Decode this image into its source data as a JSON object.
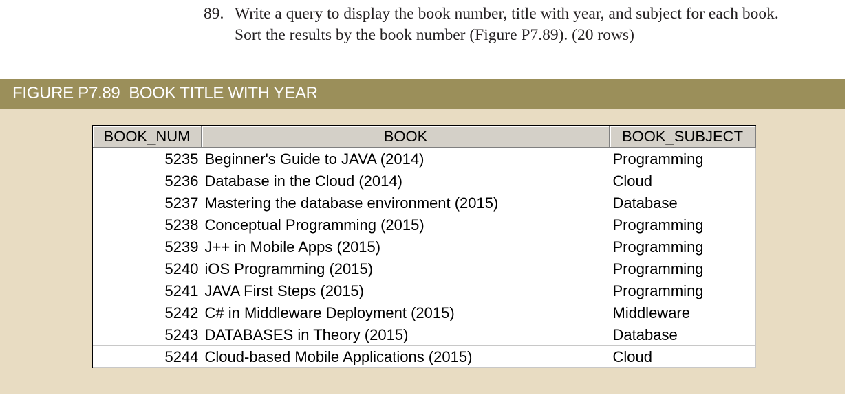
{
  "question": {
    "number": "89.",
    "line1": "Write a query to display the book number, title with year, and subject for each book.",
    "line2": "Sort the results by the book number (Figure P7.89). (20 rows)"
  },
  "figure": {
    "title": "FIGURE P7.89  BOOK TITLE WITH YEAR"
  },
  "table": {
    "columns": [
      "BOOK_NUM",
      "BOOK",
      "BOOK_SUBJECT"
    ],
    "rows": [
      [
        "5235",
        "Beginner's Guide to JAVA (2014)",
        "Programming"
      ],
      [
        "5236",
        "Database in the Cloud (2014)",
        "Cloud"
      ],
      [
        "5237",
        "Mastering the database environment (2015)",
        "Database"
      ],
      [
        "5238",
        "Conceptual Programming (2015)",
        "Programming"
      ],
      [
        "5239",
        "J++ in Mobile Apps (2015)",
        "Programming"
      ],
      [
        "5240",
        "iOS Programming (2015)",
        "Programming"
      ],
      [
        "5241",
        "JAVA First Steps (2015)",
        "Programming"
      ],
      [
        "5242",
        "C# in Middleware Deployment (2015)",
        "Middleware"
      ],
      [
        "5243",
        "DATABASES in Theory (2015)",
        "Database"
      ],
      [
        "5244",
        "Cloud-based Mobile Applications (2015)",
        "Cloud"
      ]
    ]
  }
}
